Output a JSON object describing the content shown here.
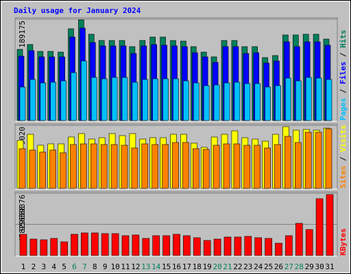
{
  "chart_data": {
    "type": "bar",
    "title": "Daily usage for January 2024",
    "title_color": "#0000ff",
    "separator": "/",
    "categories": [
      "1",
      "2",
      "3",
      "4",
      "5",
      "6",
      "7",
      "8",
      "9",
      "10",
      "11",
      "12",
      "13",
      "14",
      "15",
      "16",
      "17",
      "18",
      "19",
      "20",
      "21",
      "22",
      "23",
      "24",
      "25",
      "26",
      "27",
      "28",
      "29",
      "30",
      "31"
    ],
    "category_colors": [
      "#000000",
      "#000000",
      "#000000",
      "#000000",
      "#000000",
      "#00805c",
      "#00805c",
      "#000000",
      "#000000",
      "#000000",
      "#000000",
      "#000000",
      "#00805c",
      "#00805c",
      "#000000",
      "#000000",
      "#000000",
      "#000000",
      "#000000",
      "#00805c",
      "#00805c",
      "#000000",
      "#000000",
      "#000000",
      "#000000",
      "#000000",
      "#00805c",
      "#00805c",
      "#000000",
      "#000000",
      "#000000"
    ],
    "panels": [
      {
        "ylim": [
          0,
          189175
        ],
        "yticks": [
          189175
        ],
        "series": [
          {
            "name": "Hits",
            "color": "#00805c",
            "values": [
              132900,
              141900,
              129100,
              129100,
              127800,
              171300,
              187900,
              161100,
              149500,
              149500,
              149500,
              138000,
              149500,
              155900,
              155900,
              149500,
              148300,
              138000,
              127800,
              118900,
              149500,
              149500,
              138000,
              138000,
              117600,
              121400,
              159800,
              159800,
              161100,
              161100,
              152100
            ]
          },
          {
            "name": "Files",
            "color": "#0000ff",
            "values": [
              120150,
              130380,
              118870,
              118870,
              118870,
              155940,
              172560,
              145720,
              139320,
              139320,
              139320,
              125260,
              139320,
              141880,
              140600,
              139320,
              138050,
              126540,
              118870,
              108650,
              138050,
              138050,
              125260,
              126540,
              107370,
              111200,
              146990,
              138050,
              146990,
              146990,
              140600
            ]
          },
          {
            "name": "Pages",
            "color": "#00c0ff",
            "values": [
              62630,
              76690,
              70300,
              71580,
              74140,
              89470,
              111200,
              80530,
              77970,
              80530,
              80530,
              71580,
              76690,
              77970,
              77970,
              77970,
              74140,
              70300,
              65190,
              66470,
              70300,
              71580,
              69020,
              69020,
              62630,
              65190,
              79250,
              74140,
              80530,
              79250,
              76690
            ]
          }
        ]
      },
      {
        "ylim": [
          0,
          9020
        ],
        "yticks": [
          9020
        ],
        "series": [
          {
            "name": "Visits",
            "color": "#ffff00",
            "values": [
              6863,
              7745,
              6177,
              6373,
              6373,
              7353,
              7843,
              7059,
              7255,
              7843,
              7549,
              7843,
              7059,
              7255,
              7255,
              7745,
              7745,
              6471,
              5882,
              7353,
              7745,
              8235,
              7255,
              7059,
              6765,
              7745,
              8824,
              8333,
              8431,
              8333,
              8627
            ]
          },
          {
            "name": "Sites",
            "color": "#ff8000",
            "values": [
              5686,
              5490,
              5196,
              5490,
              5098,
              6275,
              6373,
              6373,
              6275,
              6275,
              6177,
              5784,
              6373,
              6275,
              6275,
              6569,
              6569,
              5686,
              5588,
              6177,
              6373,
              6373,
              6177,
              6177,
              5784,
              6275,
              7451,
              6569,
              8039,
              8039,
              8529
            ]
          }
        ]
      },
      {
        "ylim": [
          0,
          95659376
        ],
        "yticks": [
          47829688,
          95659376
        ],
        "series": [
          {
            "name": "KBytes",
            "color": "#ff0000",
            "values": [
              32590000,
              25230000,
              24180000,
              26280000,
              21020000,
              32590000,
              34690000,
              34690000,
              33640000,
              33640000,
              30480000,
              31540000,
              26280000,
              30480000,
              30480000,
              32590000,
              30480000,
              27330000,
              23130000,
              25230000,
              28380000,
              28380000,
              29430000,
              27330000,
              26280000,
              18920000,
              30480000,
              49410000,
              39950000,
              87250000,
              93560000
            ]
          }
        ]
      }
    ]
  }
}
